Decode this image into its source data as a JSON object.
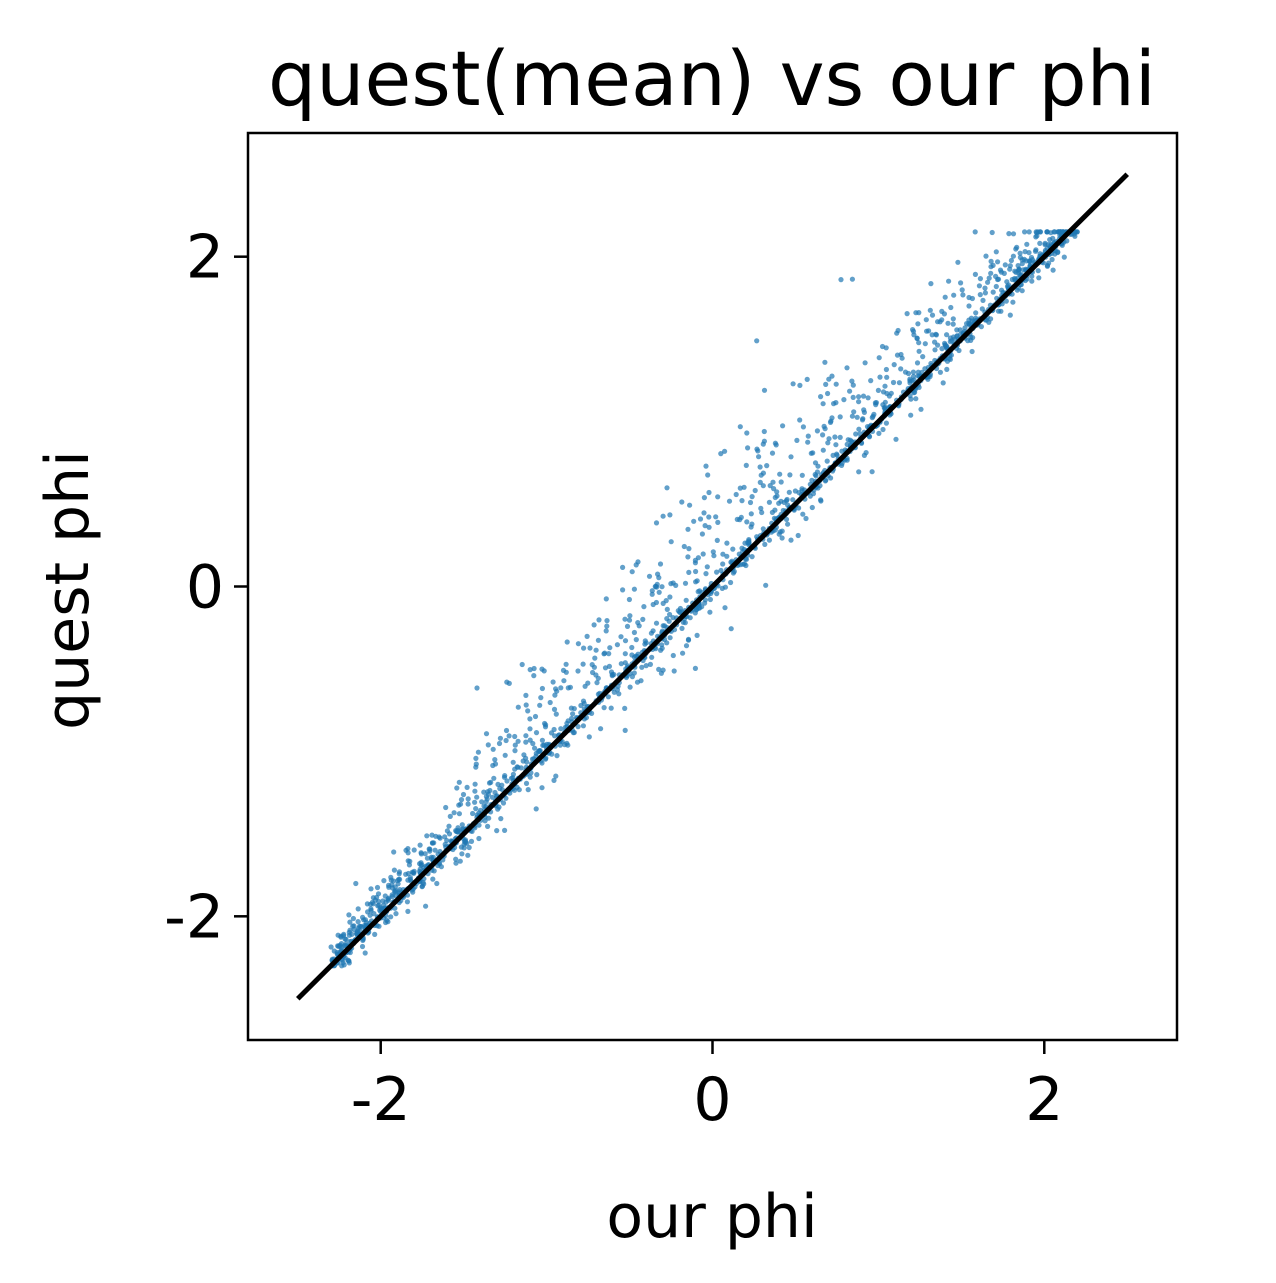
{
  "chart_data": {
    "type": "scatter",
    "title": "quest(mean) vs our phi",
    "xlabel": "our phi",
    "ylabel": "quest phi",
    "xlim": [
      -2.8,
      2.8
    ],
    "ylim": [
      -2.75,
      2.75
    ],
    "xticks": [
      -2,
      0,
      2
    ],
    "yticks": [
      -2,
      0,
      2
    ],
    "xtick_labels": [
      "-2",
      "0",
      "2"
    ],
    "ytick_labels": [
      "-2",
      "0",
      "2"
    ],
    "grid": false,
    "colors": {
      "points": "#1f77b4",
      "line": "#000000",
      "axes": "#000000"
    },
    "series": [
      {
        "kind": "points",
        "description_x_range": [
          -2.3,
          2.2
        ],
        "approx_count": 1800
      },
      {
        "kind": "line",
        "x": [
          -2.5,
          2.5
        ],
        "y": [
          -2.5,
          2.5
        ]
      }
    ]
  }
}
